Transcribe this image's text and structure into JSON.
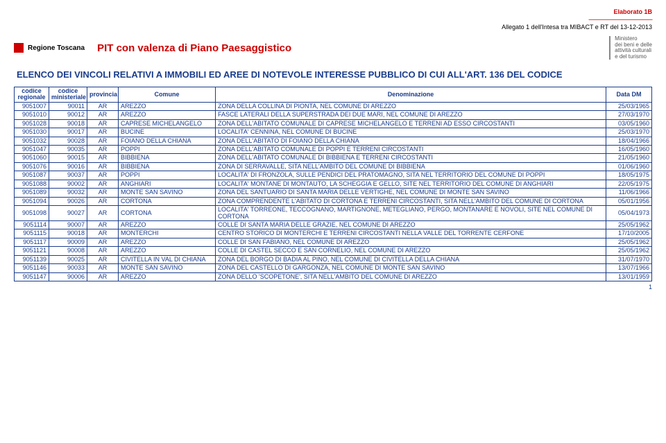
{
  "top": {
    "elab": "Elaborato 1B",
    "sep": "----------------------------------------------",
    "note": "Allegato 1 dell'Intesa tra MIBACT e RT del 13-12-2013"
  },
  "header": {
    "region": "Regione Toscana",
    "center": "PIT con valenza di Piano Paesaggistico",
    "ministry1": "Ministero",
    "ministry2": "dei beni e delle",
    "ministry3": "attività culturali",
    "ministry4": "e del turismo"
  },
  "section_title": "ELENCO DEI VINCOLI RELATIVI A IMMOBILI ED AREE DI NOTEVOLE INTERESSE PUBBLICO DI CUI ALL'ART. 136 DEL CODICE",
  "columns": {
    "c1a": "codice",
    "c1b": "regionale",
    "c2a": "codice",
    "c2b": "ministeriale",
    "c3": "provincia",
    "c4": "Comune",
    "c5": "Denominazione",
    "c6": "Data DM"
  },
  "rows": [
    {
      "r": "9051007",
      "m": "90011",
      "p": "AR",
      "c": "AREZZO",
      "d": "ZONA DELLA COLLINA DI PIONTA, NEL COMUNE DI AREZZO",
      "dt": "25/03/1965"
    },
    {
      "r": "9051010",
      "m": "90012",
      "p": "AR",
      "c": "AREZZO",
      "d": "FASCE LATERALI DELLA SUPERSTRADA DEI DUE MARI, NEL COMUNE DI AREZZO",
      "dt": "27/03/1970"
    },
    {
      "r": "9051028",
      "m": "90018",
      "p": "AR",
      "c": "CAPRESE MICHELANGELO",
      "d": "ZONA DELL'ABITATO COMUNALE DI CAPRESE MICHELANGELO E TERRENI AD ESSO CIRCOSTANTI",
      "dt": "03/05/1960"
    },
    {
      "r": "9051030",
      "m": "90017",
      "p": "AR",
      "c": "BUCINE",
      "d": "LOCALITA' CENNINA, NEL COMUNE DI BUCINE",
      "dt": "25/03/1970"
    },
    {
      "r": "9051032",
      "m": "90028",
      "p": "AR",
      "c": "FOIANO DELLA CHIANA",
      "d": "ZONA DELL'ABITATO DI FOIANO DELLA CHIANA",
      "dt": "18/04/1966"
    },
    {
      "r": "9051047",
      "m": "90035",
      "p": "AR",
      "c": "POPPI",
      "d": "ZONA DELL'ABITATO COMUNALE DI POPPI E TERRENI CIRCOSTANTI",
      "dt": "16/05/1960"
    },
    {
      "r": "9051060",
      "m": "90015",
      "p": "AR",
      "c": "BIBBIENA",
      "d": "ZONA DELL'ABITATO COMUNALE DI BIBBIENA E TERRENI CIRCOSTANTI",
      "dt": "21/05/1960"
    },
    {
      "r": "9051076",
      "m": "90016",
      "p": "AR",
      "c": "BIBBIENA",
      "d": "ZONA DI SERRAVALLE, SITA NELL'AMBITO DEL COMUNE DI BIBBIENA",
      "dt": "01/06/1960"
    },
    {
      "r": "9051087",
      "m": "90037",
      "p": "AR",
      "c": "POPPI",
      "d": "LOCALITA' DI FRONZOLA, SULLE PENDICI DEL PRATOMAGNO, SITA NEL TERRITORIO DEL COMUNE DI POPPI",
      "dt": "18/05/1975"
    },
    {
      "r": "9051088",
      "m": "90002",
      "p": "AR",
      "c": "ANGHIARI",
      "d": "LOCALITA' MONTANE DI MONTAUTO, LA SCHEGGIA E GELLO, SITE NEL TERRITORIO DEL COMUNE DI ANGHIARI",
      "dt": "22/05/1975"
    },
    {
      "r": "9051089",
      "m": "90032",
      "p": "AR",
      "c": "MONTE SAN SAVINO",
      "d": "ZONA DEL SANTUARIO DI SANTA MARIA DELLE VERTIGHE, NEL COMUNE DI MONTE SAN SAVINO",
      "dt": "11/06/1966"
    },
    {
      "r": "9051094",
      "m": "90026",
      "p": "AR",
      "c": "CORTONA",
      "d": "ZONA COMPRENDENTE L'ABITATO DI CORTONA E TERRENI CIRCOSTANTI, SITA NELL'AMBITO DEL COMUNE DI CORTONA",
      "dt": "05/01/1956"
    },
    {
      "r": "9051098",
      "m": "90027",
      "p": "AR",
      "c": "CORTONA",
      "d": "LOCALITA' TORREONE, TECCOGNANO, MARTIGNONE, METEGLIANO, PERGO, MONTANARE E NOVOLI, SITE NEL COMUNE DI CORTONA",
      "dt": "05/04/1973"
    },
    {
      "r": "9051114",
      "m": "90007",
      "p": "AR",
      "c": "AREZZO",
      "d": "COLLE DI SANTA MARIA DELLE GRAZIE, NEL COMUNE DI AREZZO",
      "dt": "25/05/1962"
    },
    {
      "r": "9051115",
      "m": "90018",
      "p": "AR",
      "c": "MONTERCHI",
      "d": "CENTRO STORICO DI MONTERCHI E TERRENI CIRCOSTANTI NELLA VALLE DEL TORRENTE CERFONE",
      "dt": "17/10/2005"
    },
    {
      "r": "9051117",
      "m": "90009",
      "p": "AR",
      "c": "AREZZO",
      "d": "COLLE DI SAN FABIANO, NEL COMUNE DI AREZZO",
      "dt": "25/05/1962"
    },
    {
      "r": "9051121",
      "m": "90008",
      "p": "AR",
      "c": "AREZZO",
      "d": "COLLE DI CASTEL SECCO E SAN CORNELIO, NEL COMUNE DI AREZZO",
      "dt": "25/05/1962"
    },
    {
      "r": "9051139",
      "m": "90025",
      "p": "AR",
      "c": "CIVITELLA IN VAL DI CHIANA",
      "d": "ZONA DEL BORGO DI BADIA AL PINO, NEL COMUNE DI CIVITELLA DELLA CHIANA",
      "dt": "31/07/1970"
    },
    {
      "r": "9051146",
      "m": "90033",
      "p": "AR",
      "c": "MONTE SAN SAVINO",
      "d": "ZONA DEL CASTELLO DI GARGONZA, NEL COMUNE DI MONTE SAN SAVINO",
      "dt": "13/07/1966"
    },
    {
      "r": "9051147",
      "m": "90006",
      "p": "AR",
      "c": "AREZZO",
      "d": "ZONA DELLO 'SCOPETONE', SITA NELL'AMBITO DEL COMUNE DI AREZZO",
      "dt": "13/01/1959"
    }
  ],
  "page": "1"
}
